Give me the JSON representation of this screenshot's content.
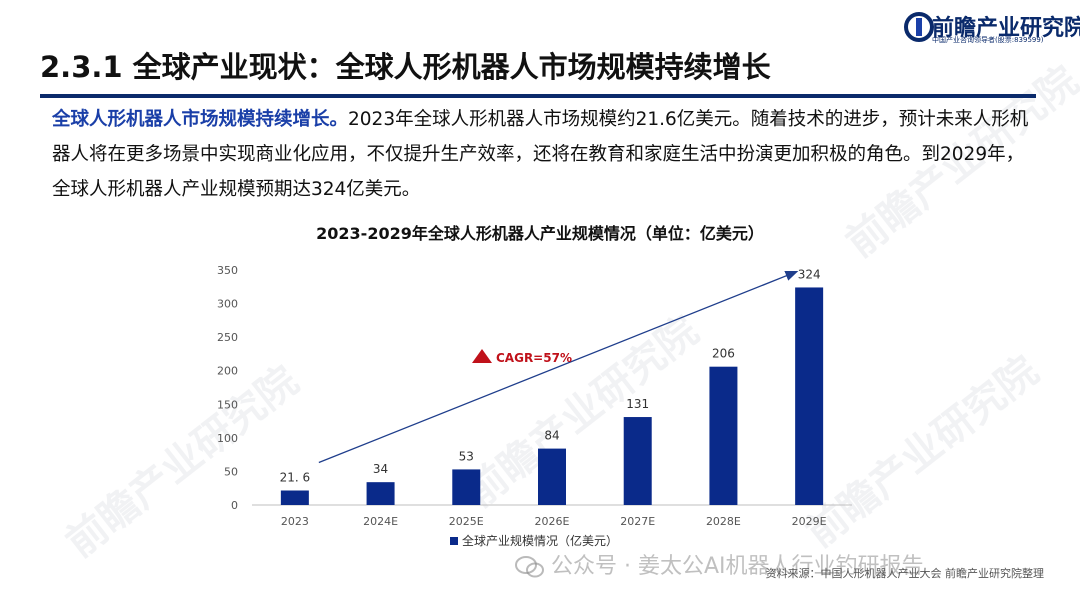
{
  "brand": {
    "name": "前瞻产业研究院",
    "tagline": "中国产业咨询领导者(股票:839599)"
  },
  "slide": {
    "title": "2.3.1 全球产业现状：全球人形机器人市场规模持续增长",
    "lead": "全球人形机器人市场规模持续增长。",
    "body": "2023年全球人形机器人市场规模约21.6亿美元。随着技术的进步，预计未来人形机器人将在更多场景中实现商业化应用，不仅提升生产效率，还将在教育和家庭生活中扮演更加积极的角色。到2029年，全球人形机器人产业规模预期达324亿美元。"
  },
  "footer": {
    "source": "资料来源：中国人形机器人产业大会 前瞻产业研究院整理",
    "wechat": "公众号 · 姜太公AI机器人行业钓研报告"
  },
  "colors": {
    "bar": "#0a2a8a",
    "accent": "#c0111a",
    "text": "#111111",
    "axis": "#555555"
  },
  "chart_data": {
    "type": "bar",
    "title": "2023-2029年全球人形机器人产业规模情况（单位：亿美元）",
    "categories": [
      "2023",
      "2024E",
      "2025E",
      "2026E",
      "2027E",
      "2028E",
      "2029E"
    ],
    "series": [
      {
        "name": "全球产业规模情况（亿美元）",
        "values": [
          21.6,
          34,
          53,
          84,
          131,
          206,
          324
        ]
      }
    ],
    "data_labels": [
      "21. 6",
      "34",
      "53",
      "84",
      "131",
      "206",
      "324"
    ],
    "ylim": [
      0,
      350
    ],
    "yticks": [
      0,
      50,
      100,
      150,
      200,
      250,
      300,
      350
    ],
    "grid": false,
    "legend": "bottom",
    "annotation": {
      "text": "CAGR=57%",
      "icon": "triangle-up-icon"
    }
  }
}
